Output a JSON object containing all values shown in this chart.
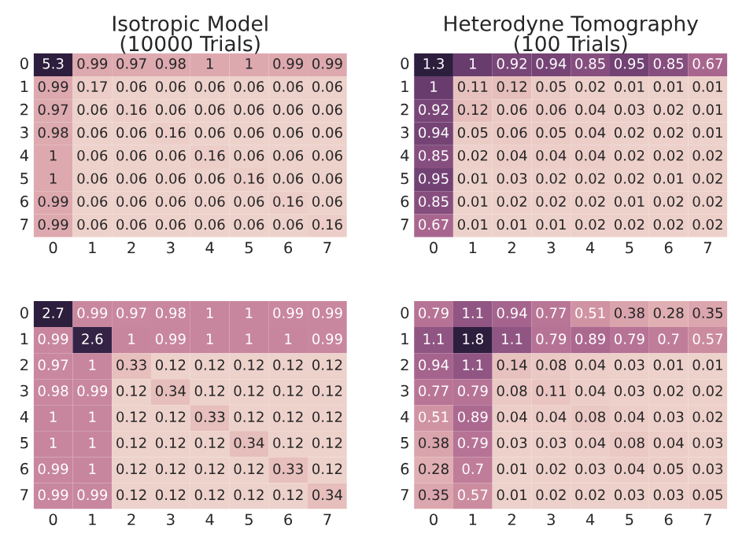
{
  "chart_data": [
    {
      "type": "heatmap",
      "title": "Isotropic Model\n(10000 Trials)",
      "data_labels": true,
      "categories": [
        "0",
        "1",
        "2",
        "3",
        "4",
        "5",
        "6",
        "7"
      ],
      "y_categories": [
        "0",
        "1",
        "2",
        "3",
        "4",
        "5",
        "6",
        "7"
      ],
      "cells": [
        [
          5.3,
          0.99,
          0.97,
          0.98,
          1,
          1,
          0.99,
          0.99
        ],
        [
          0.99,
          0.17,
          0.06,
          0.06,
          0.06,
          0.06,
          0.06,
          0.06
        ],
        [
          0.97,
          0.06,
          0.16,
          0.06,
          0.06,
          0.06,
          0.06,
          0.06
        ],
        [
          0.98,
          0.06,
          0.06,
          0.16,
          0.06,
          0.06,
          0.06,
          0.06
        ],
        [
          1,
          0.06,
          0.06,
          0.06,
          0.16,
          0.06,
          0.06,
          0.06
        ],
        [
          1,
          0.06,
          0.06,
          0.06,
          0.06,
          0.16,
          0.06,
          0.06
        ],
        [
          0.99,
          0.06,
          0.06,
          0.06,
          0.06,
          0.06,
          0.16,
          0.06
        ],
        [
          0.99,
          0.06,
          0.06,
          0.06,
          0.06,
          0.06,
          0.06,
          0.16
        ]
      ]
    },
    {
      "type": "heatmap",
      "title": "Heterodyne Tomography\n(100 Trials)",
      "data_labels": true,
      "categories": [
        "0",
        "1",
        "2",
        "3",
        "4",
        "5",
        "6",
        "7"
      ],
      "y_categories": [
        "0",
        "1",
        "2",
        "3",
        "4",
        "5",
        "6",
        "7"
      ],
      "cells": [
        [
          1.3,
          1,
          0.92,
          0.94,
          0.85,
          0.95,
          0.85,
          0.67
        ],
        [
          1,
          0.11,
          0.12,
          0.05,
          0.02,
          0.01,
          0.01,
          0.01
        ],
        [
          0.92,
          0.12,
          0.06,
          0.06,
          0.04,
          0.03,
          0.02,
          0.01
        ],
        [
          0.94,
          0.05,
          0.06,
          0.05,
          0.04,
          0.02,
          0.02,
          0.01
        ],
        [
          0.85,
          0.02,
          0.04,
          0.04,
          0.04,
          0.02,
          0.02,
          0.02
        ],
        [
          0.95,
          0.01,
          0.03,
          0.02,
          0.02,
          0.02,
          0.01,
          0.02
        ],
        [
          0.85,
          0.01,
          0.02,
          0.02,
          0.02,
          0.01,
          0.02,
          0.02
        ],
        [
          0.67,
          0.01,
          0.01,
          0.01,
          0.02,
          0.02,
          0.02,
          0.02
        ]
      ]
    },
    {
      "type": "heatmap",
      "data_labels": true,
      "categories": [
        "0",
        "1",
        "2",
        "3",
        "4",
        "5",
        "6",
        "7"
      ],
      "y_categories": [
        "0",
        "1",
        "2",
        "3",
        "4",
        "5",
        "6",
        "7"
      ],
      "cells": [
        [
          2.7,
          0.99,
          0.97,
          0.98,
          1,
          1,
          0.99,
          0.99
        ],
        [
          0.99,
          2.6,
          1,
          0.99,
          1,
          1,
          1,
          0.99
        ],
        [
          0.97,
          1,
          0.33,
          0.12,
          0.12,
          0.12,
          0.12,
          0.12
        ],
        [
          0.98,
          0.99,
          0.12,
          0.34,
          0.12,
          0.12,
          0.12,
          0.12
        ],
        [
          1,
          1,
          0.12,
          0.12,
          0.33,
          0.12,
          0.12,
          0.12
        ],
        [
          1,
          1,
          0.12,
          0.12,
          0.12,
          0.34,
          0.12,
          0.12
        ],
        [
          0.99,
          1,
          0.12,
          0.12,
          0.12,
          0.12,
          0.33,
          0.12
        ],
        [
          0.99,
          0.99,
          0.12,
          0.12,
          0.12,
          0.12,
          0.12,
          0.34
        ]
      ]
    },
    {
      "type": "heatmap",
      "data_labels": true,
      "categories": [
        "0",
        "1",
        "2",
        "3",
        "4",
        "5",
        "6",
        "7"
      ],
      "y_categories": [
        "0",
        "1",
        "2",
        "3",
        "4",
        "5",
        "6",
        "7"
      ],
      "cells": [
        [
          0.79,
          1.1,
          0.94,
          0.77,
          0.51,
          0.38,
          0.28,
          0.35
        ],
        [
          1.1,
          1.8,
          1.1,
          0.79,
          0.89,
          0.79,
          0.7,
          0.57
        ],
        [
          0.94,
          1.1,
          0.14,
          0.08,
          0.04,
          0.03,
          0.01,
          0.01
        ],
        [
          0.77,
          0.79,
          0.08,
          0.11,
          0.04,
          0.03,
          0.02,
          0.02
        ],
        [
          0.51,
          0.89,
          0.04,
          0.04,
          0.08,
          0.04,
          0.03,
          0.02
        ],
        [
          0.38,
          0.79,
          0.03,
          0.03,
          0.04,
          0.08,
          0.04,
          0.03
        ],
        [
          0.28,
          0.7,
          0.01,
          0.02,
          0.03,
          0.04,
          0.05,
          0.03
        ],
        [
          0.35,
          0.57,
          0.01,
          0.02,
          0.02,
          0.03,
          0.03,
          0.05
        ]
      ]
    }
  ]
}
